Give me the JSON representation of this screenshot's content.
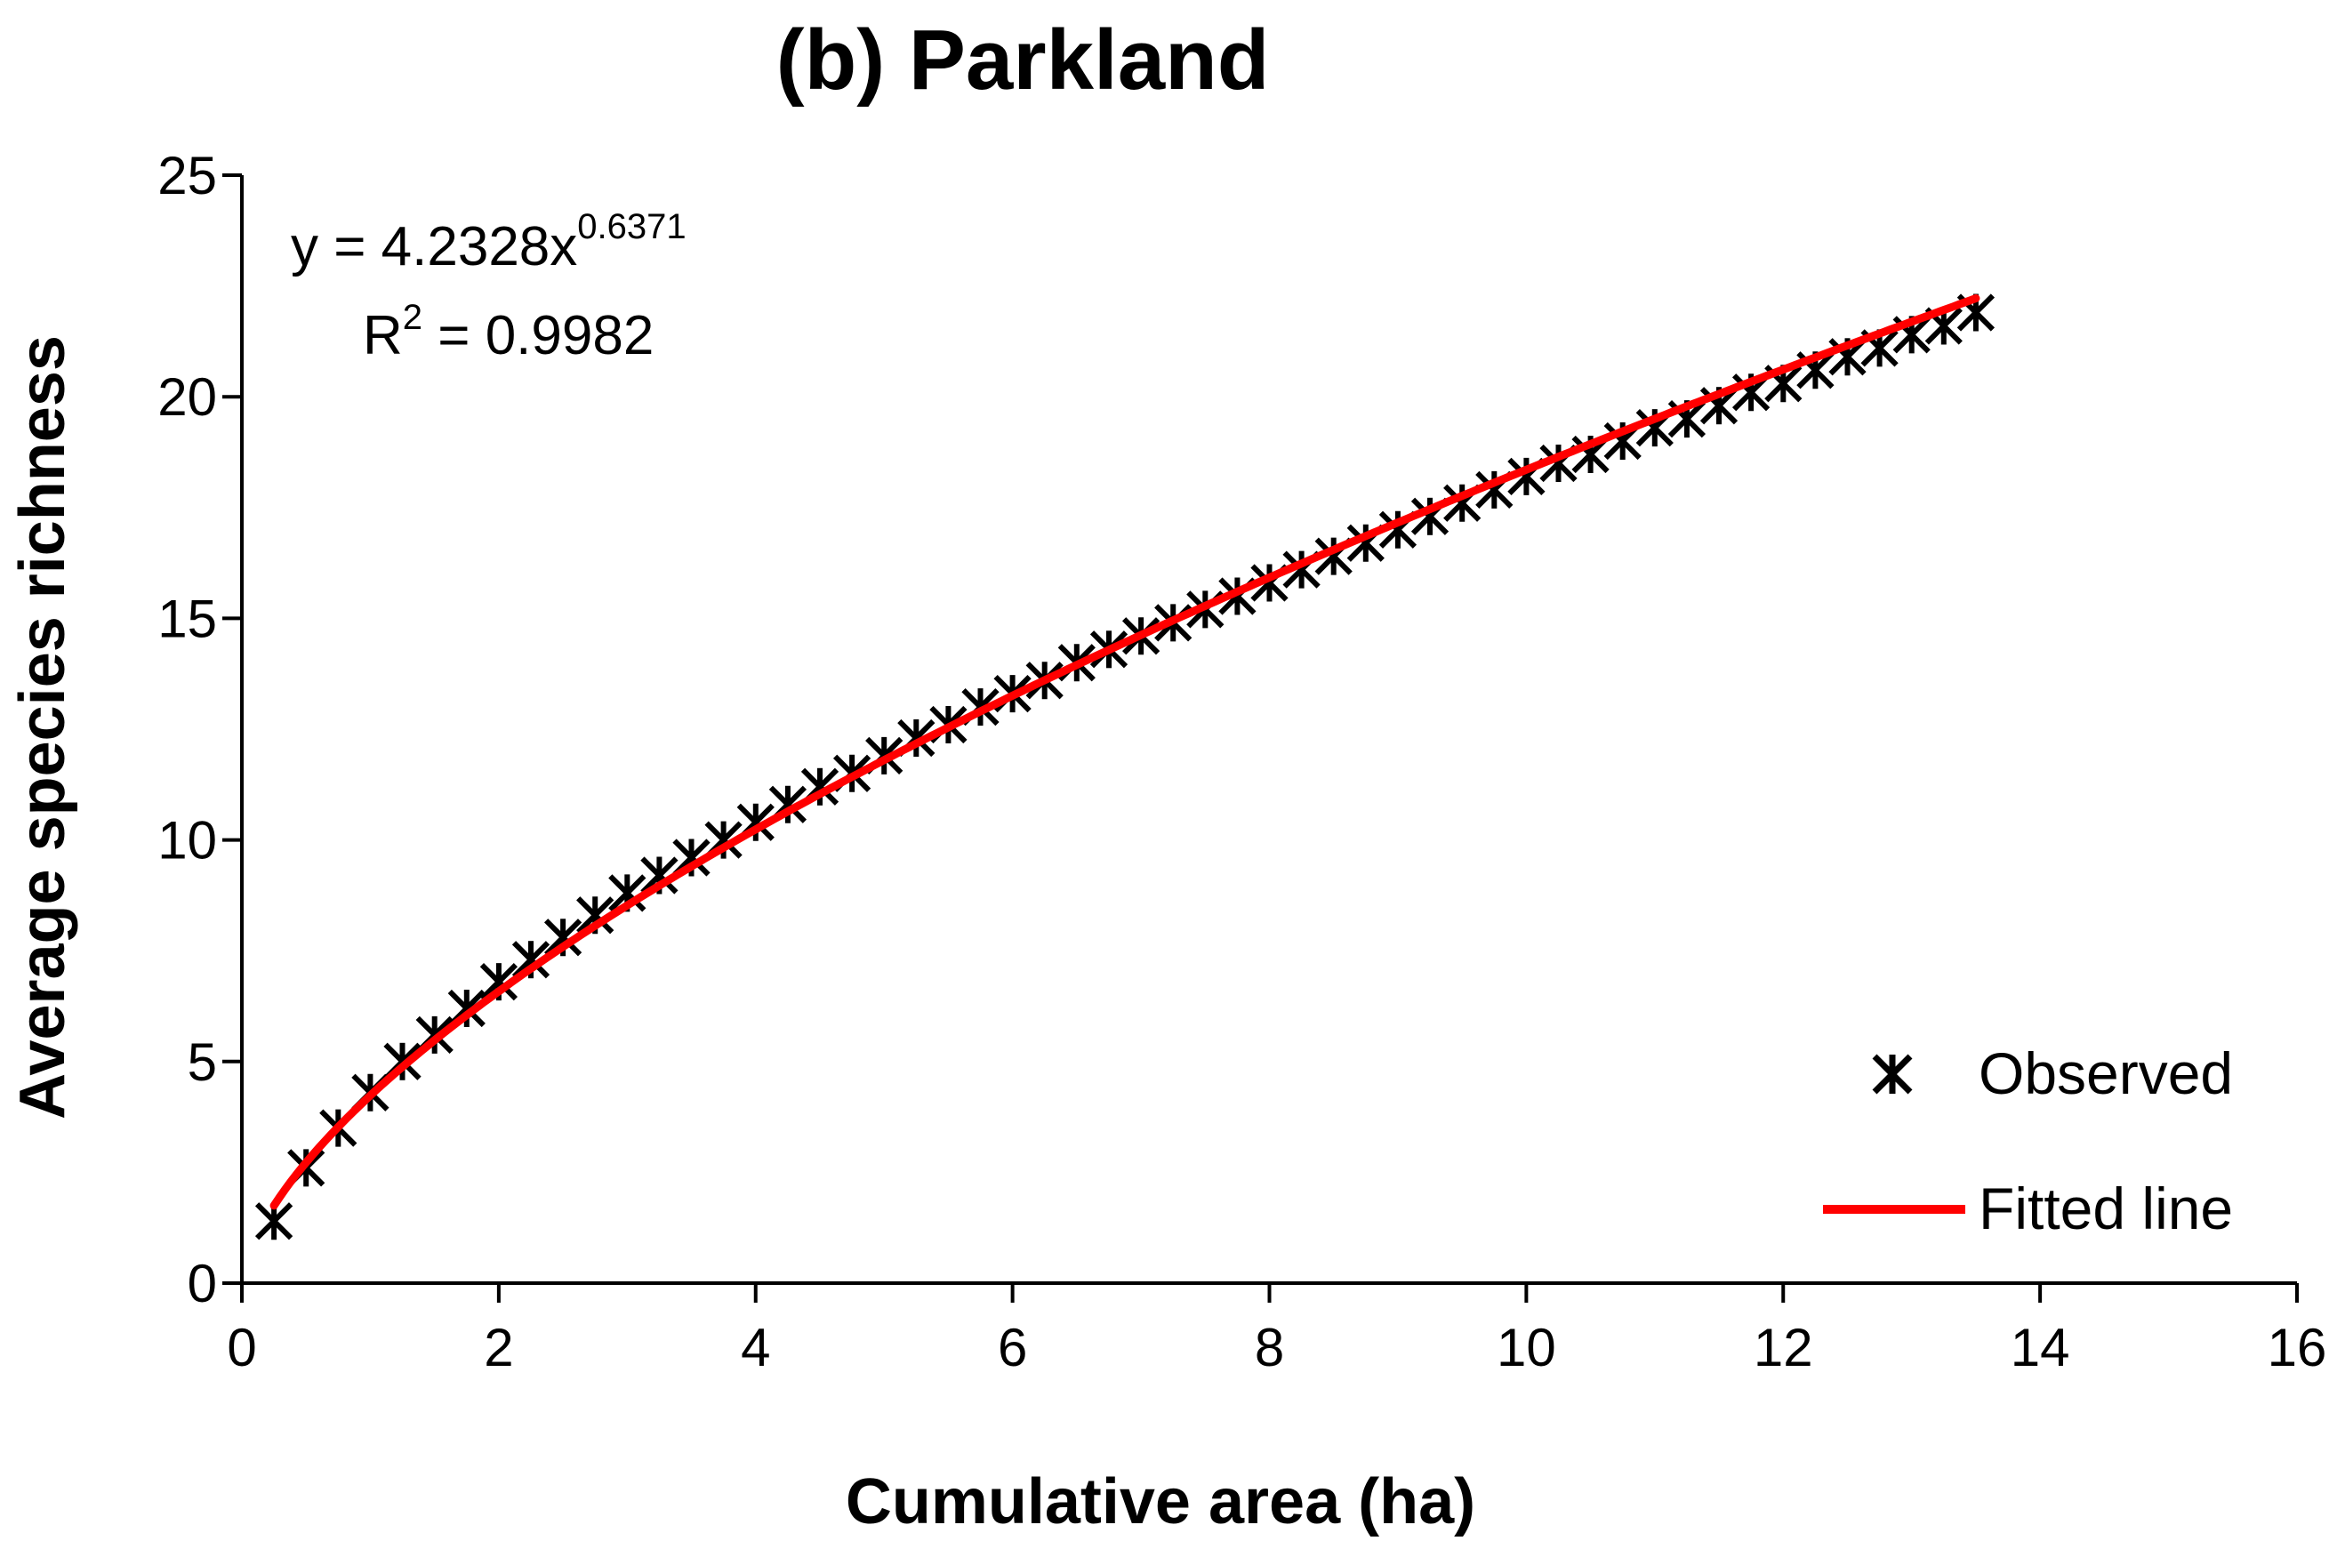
{
  "chart_data": {
    "type": "scatter",
    "title": "(b) Parkland",
    "xlabel": "Cumulative area (ha)",
    "ylabel": "Average species richness",
    "xlim": [
      0,
      16
    ],
    "ylim": [
      0,
      25
    ],
    "xticks": [
      "0",
      "2",
      "4",
      "6",
      "8",
      "10",
      "12",
      "14",
      "16"
    ],
    "yticks": [
      "0",
      "5",
      "10",
      "15",
      "20",
      "25"
    ],
    "grid": false,
    "legend_position": "bottom-right",
    "series": [
      {
        "name": "Observed",
        "marker": "star-x",
        "color": "#000000",
        "x": [
          0.25,
          0.5,
          0.75,
          1.0,
          1.25,
          1.5,
          1.75,
          2.0,
          2.25,
          2.5,
          2.75,
          3.0,
          3.25,
          3.5,
          3.75,
          4.0,
          4.25,
          4.5,
          4.75,
          5.0,
          5.25,
          5.5,
          5.75,
          6.0,
          6.25,
          6.5,
          6.75,
          7.0,
          7.25,
          7.5,
          7.75,
          8.0,
          8.25,
          8.5,
          8.75,
          9.0,
          9.25,
          9.5,
          9.75,
          10.0,
          10.25,
          10.5,
          10.75,
          11.0,
          11.25,
          11.5,
          11.75,
          12.0,
          12.25,
          12.5,
          12.75,
          13.0,
          13.25,
          13.5
        ],
        "y": [
          1.4,
          2.6,
          3.5,
          4.3,
          5.0,
          5.6,
          6.2,
          6.8,
          7.3,
          7.8,
          8.3,
          8.8,
          9.2,
          9.6,
          10.0,
          10.4,
          10.8,
          11.2,
          11.5,
          11.9,
          12.3,
          12.6,
          13.0,
          13.3,
          13.6,
          14.0,
          14.3,
          14.6,
          14.9,
          15.2,
          15.5,
          15.8,
          16.1,
          16.4,
          16.7,
          17.0,
          17.3,
          17.6,
          17.9,
          18.2,
          18.5,
          18.7,
          19.0,
          19.3,
          19.5,
          19.8,
          20.1,
          20.3,
          20.6,
          20.9,
          21.1,
          21.4,
          21.6,
          21.9
        ]
      },
      {
        "name": "Fitted line",
        "type": "line",
        "color": "#ff0000",
        "formula": "y = 4.2328x^0.6371",
        "coefficient": 4.2328,
        "exponent": 0.6371,
        "x_range": [
          0.25,
          13.5
        ]
      }
    ],
    "annotations": {
      "equation_prefix": "y = 4.2328x",
      "equation_exponent": "0.6371",
      "r2_prefix": "R",
      "r2_sup": "2",
      "r2_value": " = 0.9982"
    }
  }
}
